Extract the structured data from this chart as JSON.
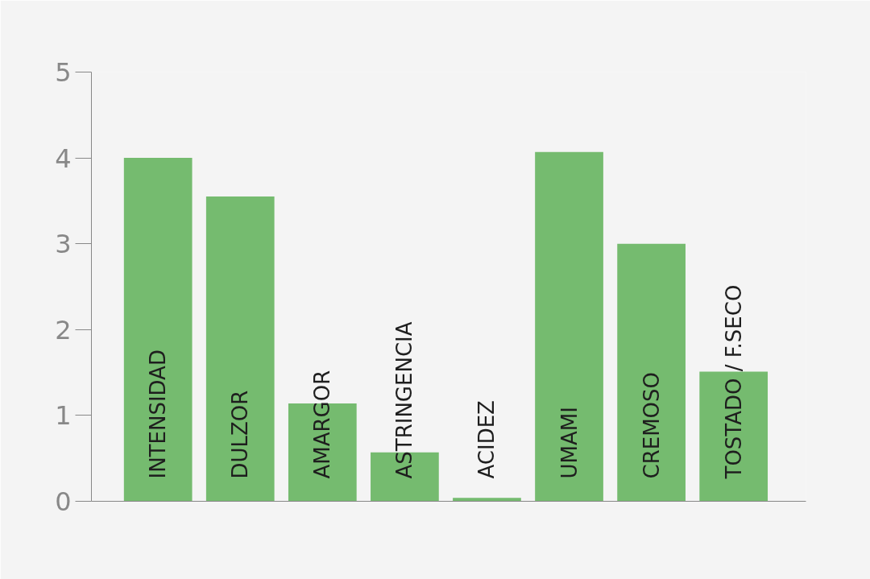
{
  "chart_data": {
    "type": "bar",
    "categories": [
      "INTENSIDAD",
      "DULZOR",
      "AMARGOR",
      "ASTRINGENCIA",
      "ACIDEZ",
      "UMAMI",
      "CREMOSO",
      "TOSTADO / F.SECO"
    ],
    "values": [
      4.0,
      3.55,
      1.14,
      0.57,
      0.04,
      4.07,
      3.0,
      1.51
    ],
    "color": "#75bb6f",
    "ylim": [
      0,
      5
    ],
    "yticks": [
      0,
      1,
      2,
      3,
      4,
      5
    ],
    "grid": false
  }
}
